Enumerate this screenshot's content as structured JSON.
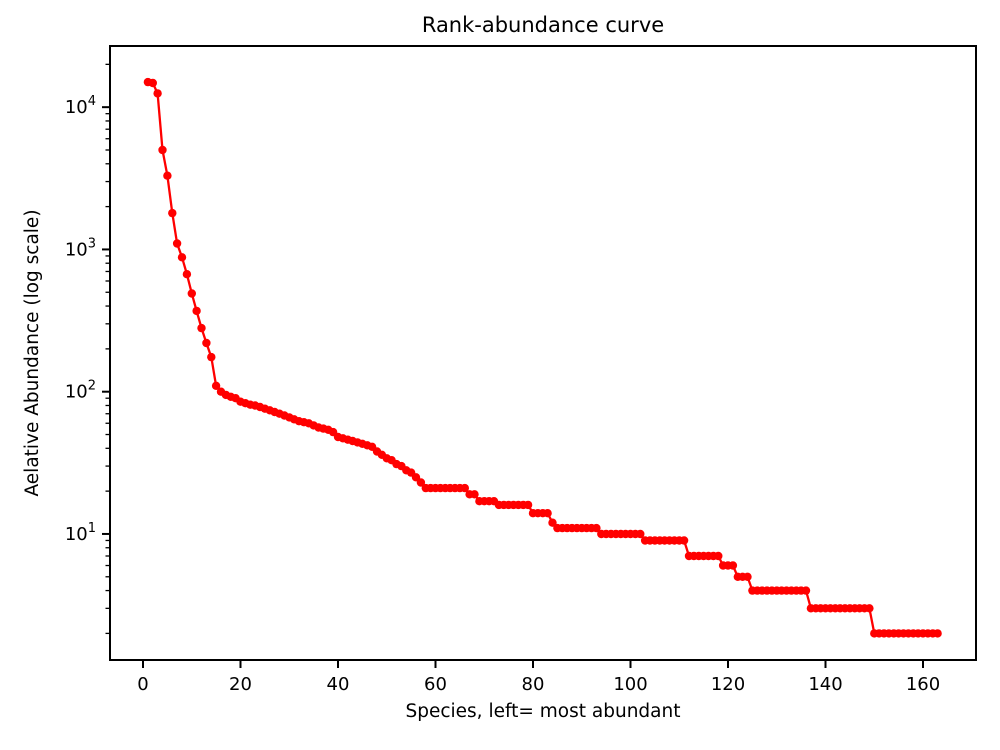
{
  "figure": {
    "title": "Rank-abundance curve",
    "xlabel": "Species, left= most abundant",
    "ylabel": "Aelative Abundance (log scale)"
  },
  "chart_data": {
    "type": "line",
    "title": "Rank-abundance curve",
    "xlabel": "Species, left= most abundant",
    "ylabel": "Aelative Abundance (log scale)",
    "yscale": "log",
    "grid": false,
    "legend": "none",
    "marker": "circle",
    "line_color": "#ff0000",
    "text_color": "#000000",
    "background_color": "#ffffff",
    "xticks": [
      0,
      20,
      40,
      60,
      80,
      100,
      120,
      140,
      160
    ],
    "ytick_exponents": [
      1,
      2,
      3,
      4
    ],
    "ytick_base": "10",
    "xlim": [
      -6.77,
      170.87
    ],
    "ylim_log10": [
      0.114,
      4.43
    ],
    "n_species": 163,
    "x_start_rank": 1,
    "series": [
      {
        "name": "relative-abundance",
        "color": "#ff0000",
        "values": [
          15000,
          14800,
          12500,
          5000,
          3300,
          1800,
          1100,
          880,
          670,
          490,
          370,
          280,
          220,
          175,
          110,
          100,
          95,
          92,
          90,
          85,
          83,
          81,
          80,
          78,
          76,
          74,
          72,
          70,
          68,
          66,
          64,
          62,
          61,
          60,
          58,
          56,
          55,
          54,
          52,
          48,
          47,
          46,
          45,
          44,
          43,
          42,
          41,
          38,
          36,
          34,
          33,
          31,
          30,
          28,
          27,
          25,
          23,
          21,
          21,
          21,
          21,
          21,
          21,
          21,
          21,
          21,
          19,
          19,
          17,
          17,
          17,
          17,
          16,
          16,
          16,
          16,
          16,
          16,
          16,
          14,
          14,
          14,
          14,
          12,
          11,
          11,
          11,
          11,
          11,
          11,
          11,
          11,
          11,
          10,
          10,
          10,
          10,
          10,
          10,
          10,
          10,
          10,
          9,
          9,
          9,
          9,
          9,
          9,
          9,
          9,
          9,
          7,
          7,
          7,
          7,
          7,
          7,
          7,
          6,
          6,
          6,
          5,
          5,
          5,
          4,
          4,
          4,
          4,
          4,
          4,
          4,
          4,
          4,
          4,
          4,
          4,
          3,
          3,
          3,
          3,
          3,
          3,
          3,
          3,
          3,
          3,
          3,
          3,
          3,
          2,
          2,
          2,
          2,
          2,
          2,
          2,
          2,
          2,
          2,
          2,
          2,
          2,
          2
        ]
      }
    ]
  }
}
